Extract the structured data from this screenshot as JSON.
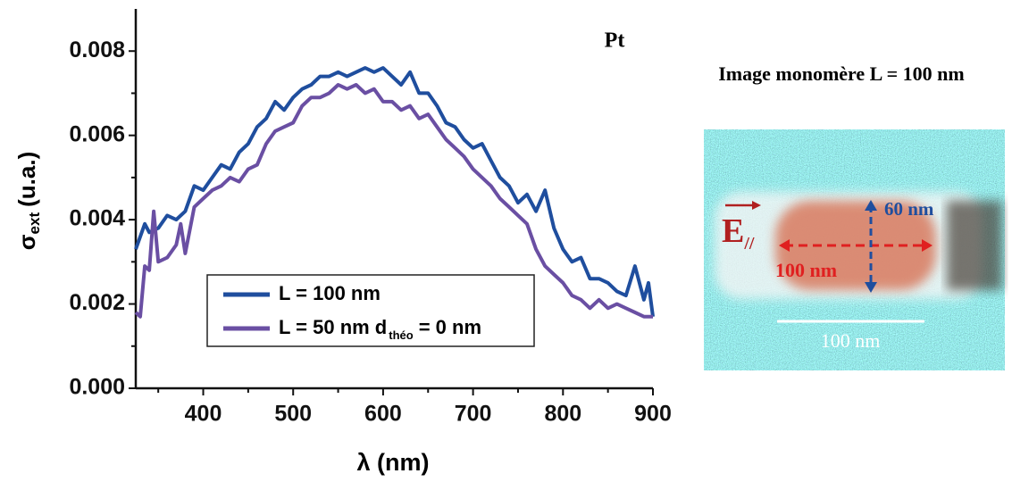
{
  "chart_data": {
    "type": "line",
    "title": "Pt",
    "x_label": "λ (nm)",
    "y_label": "σ",
    "y_label_sub": "ext",
    "y_label_rest": "(u.a.)",
    "xlim": [
      325,
      900
    ],
    "xticks": [
      400,
      500,
      600,
      700,
      800,
      900
    ],
    "minor_xticks": [
      350,
      450,
      550,
      650,
      750,
      850
    ],
    "ylim": [
      0,
      0.009
    ],
    "yticks": [
      {
        "value": 0,
        "label": "0.000"
      },
      0.002,
      0.004,
      0.006,
      0.008
    ],
    "minor_yticks": [
      0.001,
      0.003,
      0.005,
      0.007
    ],
    "series": [
      {
        "name": "L = 100 nm",
        "color": "#1f4e9e",
        "x": [
          325,
          335,
          340,
          350,
          360,
          370,
          380,
          390,
          400,
          410,
          420,
          430,
          440,
          450,
          460,
          470,
          480,
          490,
          500,
          510,
          520,
          530,
          540,
          550,
          560,
          570,
          580,
          590,
          600,
          610,
          620,
          630,
          640,
          650,
          660,
          670,
          680,
          690,
          700,
          710,
          720,
          730,
          740,
          750,
          760,
          770,
          780,
          790,
          800,
          810,
          820,
          830,
          840,
          850,
          860,
          870,
          880,
          890,
          895,
          900
        ],
        "values": [
          0.0033,
          0.0039,
          0.0037,
          0.0038,
          0.0041,
          0.004,
          0.0042,
          0.0048,
          0.0047,
          0.005,
          0.0053,
          0.0052,
          0.0056,
          0.0058,
          0.0062,
          0.0064,
          0.0068,
          0.0066,
          0.0069,
          0.0071,
          0.0072,
          0.0074,
          0.0074,
          0.0075,
          0.0074,
          0.0075,
          0.0076,
          0.0075,
          0.0076,
          0.0074,
          0.0072,
          0.0075,
          0.007,
          0.007,
          0.0067,
          0.0063,
          0.0062,
          0.0059,
          0.0057,
          0.0058,
          0.0054,
          0.005,
          0.0048,
          0.0044,
          0.0046,
          0.0042,
          0.0047,
          0.0038,
          0.0033,
          0.003,
          0.0031,
          0.0026,
          0.0026,
          0.0025,
          0.0023,
          0.0022,
          0.0029,
          0.0021,
          0.0025,
          0.0017
        ]
      },
      {
        "name": "L = 50 nm d",
        "name_sub": "théo",
        "name_suffix": "= 0 nm",
        "color": "#6a4fa3",
        "x": [
          325,
          330,
          335,
          340,
          345,
          350,
          360,
          370,
          375,
          380,
          390,
          400,
          410,
          420,
          430,
          440,
          450,
          460,
          470,
          480,
          490,
          500,
          510,
          520,
          530,
          540,
          550,
          560,
          570,
          580,
          590,
          600,
          610,
          620,
          630,
          640,
          650,
          660,
          670,
          680,
          690,
          700,
          710,
          720,
          730,
          740,
          750,
          760,
          770,
          780,
          790,
          800,
          810,
          820,
          830,
          840,
          850,
          860,
          870,
          880,
          890,
          900
        ],
        "values": [
          0.0018,
          0.0017,
          0.0029,
          0.0028,
          0.0042,
          0.003,
          0.0031,
          0.0034,
          0.0039,
          0.0032,
          0.0043,
          0.0045,
          0.0047,
          0.0048,
          0.005,
          0.0049,
          0.0052,
          0.0053,
          0.0058,
          0.0061,
          0.0062,
          0.0063,
          0.0067,
          0.0069,
          0.0069,
          0.007,
          0.0072,
          0.0071,
          0.0072,
          0.007,
          0.0071,
          0.0068,
          0.0068,
          0.0066,
          0.0067,
          0.0064,
          0.0065,
          0.0062,
          0.0059,
          0.0057,
          0.0055,
          0.0052,
          0.005,
          0.0048,
          0.0045,
          0.0043,
          0.0041,
          0.0039,
          0.0033,
          0.0029,
          0.0027,
          0.0025,
          0.0022,
          0.0021,
          0.0019,
          0.0021,
          0.0019,
          0.002,
          0.0019,
          0.0018,
          0.0017,
          0.0017
        ]
      }
    ]
  },
  "image_panel": {
    "title": "Image monomère L = 100 nm",
    "field": "E",
    "field_sub": "//",
    "width_label": "60 nm",
    "length_label": "100 nm",
    "scale_label": "100 nm"
  }
}
